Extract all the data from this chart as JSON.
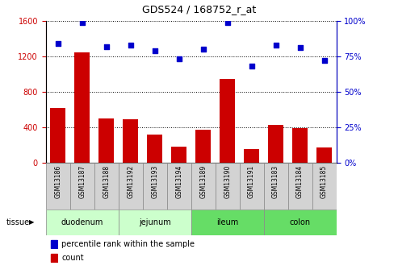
{
  "title": "GDS524 / 168752_r_at",
  "samples": [
    "GSM13186",
    "GSM13187",
    "GSM13188",
    "GSM13192",
    "GSM13193",
    "GSM13194",
    "GSM13189",
    "GSM13190",
    "GSM13191",
    "GSM13183",
    "GSM13184",
    "GSM13185"
  ],
  "counts": [
    620,
    1240,
    500,
    490,
    320,
    180,
    370,
    940,
    155,
    430,
    390,
    175
  ],
  "percentiles": [
    84,
    99,
    82,
    83,
    79,
    73,
    80,
    99,
    68,
    83,
    81,
    72
  ],
  "tissue_groups": [
    {
      "label": "duodenum",
      "start": 0,
      "end": 3,
      "color": "#ccffcc"
    },
    {
      "label": "jejunum",
      "start": 3,
      "end": 6,
      "color": "#ccffcc"
    },
    {
      "label": "ileum",
      "start": 6,
      "end": 9,
      "color": "#66dd66"
    },
    {
      "label": "colon",
      "start": 9,
      "end": 12,
      "color": "#66dd66"
    }
  ],
  "bar_color": "#cc0000",
  "scatter_color": "#0000cc",
  "left_axis_color": "#cc0000",
  "right_axis_color": "#0000cc",
  "ylim_left": [
    0,
    1600
  ],
  "ylim_right": [
    0,
    100
  ],
  "yticks_left": [
    0,
    400,
    800,
    1200,
    1600
  ],
  "yticks_right": [
    0,
    25,
    50,
    75,
    100
  ],
  "plot_bg": "#ffffff",
  "legend_items": [
    {
      "label": "count",
      "color": "#cc0000"
    },
    {
      "label": "percentile rank within the sample",
      "color": "#0000cc"
    }
  ]
}
